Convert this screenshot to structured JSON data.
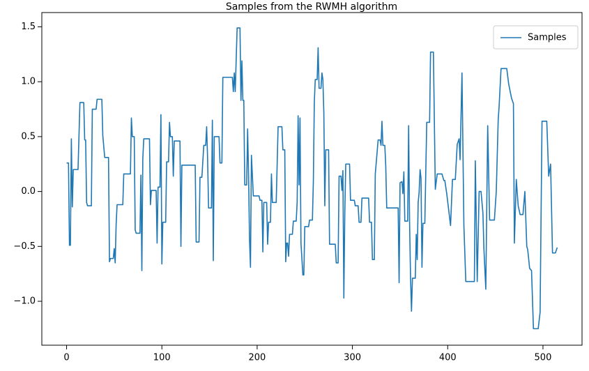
{
  "chart_data": {
    "type": "line",
    "title": "Samples from the RWMH algorithm",
    "x": [
      0,
      2,
      3,
      4,
      5,
      6,
      7,
      12,
      14,
      18,
      19,
      20,
      21,
      22,
      26,
      27,
      31,
      32,
      37,
      38,
      40,
      44,
      45,
      46,
      49,
      50,
      51,
      52,
      53,
      59,
      60,
      67,
      68,
      69,
      71,
      72,
      73,
      77,
      78,
      79,
      80,
      81,
      87,
      88,
      89,
      94,
      95,
      96,
      98,
      99,
      100,
      101,
      104,
      105,
      107,
      108,
      109,
      111,
      112,
      113,
      119,
      120,
      121,
      135,
      136,
      139,
      140,
      142,
      144,
      146,
      147,
      148,
      149,
      152,
      153,
      154,
      155,
      160,
      161,
      163,
      164,
      174,
      175,
      176,
      177,
      179,
      182,
      183,
      184,
      185,
      186,
      187,
      189,
      190,
      191,
      192,
      193,
      194,
      196,
      202,
      203,
      205,
      206,
      207,
      210,
      211,
      212,
      214,
      215,
      216,
      220,
      222,
      226,
      227,
      229,
      230,
      231,
      232,
      233,
      234,
      237,
      238,
      241,
      242,
      243,
      244,
      245,
      246,
      248,
      249,
      250,
      254,
      255,
      258,
      259,
      260,
      261,
      263,
      264,
      265,
      267,
      268,
      269,
      270,
      271,
      272,
      275,
      276,
      282,
      283,
      285,
      286,
      288,
      289,
      290,
      291,
      292,
      293,
      297,
      298,
      302,
      303,
      306,
      307,
      309,
      310,
      317,
      318,
      320,
      321,
      323,
      324,
      327,
      329,
      330,
      331,
      332,
      334,
      335,
      336,
      348,
      349,
      350,
      352,
      353,
      354,
      355,
      358,
      359,
      360,
      361,
      362,
      363,
      366,
      367,
      368,
      369,
      370,
      371,
      372,
      373,
      374,
      376,
      378,
      381,
      382,
      385,
      387,
      389,
      394,
      396,
      397,
      399,
      403,
      405,
      408,
      410,
      412,
      413,
      415,
      417,
      419,
      428,
      429,
      431,
      433,
      435,
      437,
      438,
      440,
      442,
      444,
      449,
      451,
      453,
      454,
      456,
      462,
      464,
      467,
      469,
      470,
      472,
      474,
      476,
      479,
      481,
      483,
      484,
      486,
      488,
      490,
      495,
      497,
      499,
      504,
      506,
      508,
      510,
      513,
      515
    ],
    "series": [
      {
        "name": "Samples",
        "color": "#1f77b4",
        "values": [
          0.26,
          0.26,
          -0.49,
          -0.49,
          0.48,
          -0.14,
          0.2,
          0.2,
          0.81,
          0.81,
          0.47,
          0.47,
          -0.1,
          -0.13,
          -0.13,
          0.75,
          0.75,
          0.84,
          0.84,
          0.51,
          0.31,
          0.31,
          -0.64,
          -0.61,
          -0.61,
          -0.52,
          -0.65,
          -0.3,
          -0.12,
          -0.12,
          0.16,
          0.16,
          0.67,
          0.5,
          0.5,
          -0.35,
          -0.38,
          -0.38,
          0.15,
          -0.72,
          0.3,
          0.48,
          0.48,
          -0.12,
          0.01,
          0.01,
          -0.47,
          0.04,
          0.04,
          0.7,
          -0.66,
          -0.28,
          -0.28,
          0.27,
          0.27,
          0.63,
          0.5,
          0.5,
          0.14,
          0.46,
          0.46,
          -0.5,
          0.24,
          0.24,
          -0.46,
          -0.46,
          0.13,
          0.13,
          0.42,
          0.42,
          0.59,
          0.3,
          -0.15,
          -0.15,
          0.65,
          -0.63,
          0.5,
          0.5,
          0.26,
          0.26,
          1.04,
          1.04,
          0.91,
          1.08,
          0.91,
          1.49,
          1.49,
          0.83,
          1.19,
          0.83,
          0.83,
          0.06,
          0.06,
          0.57,
          0.15,
          -0.43,
          -0.69,
          0.33,
          -0.04,
          -0.04,
          -0.08,
          -0.08,
          -0.55,
          -0.1,
          -0.1,
          -0.48,
          -0.28,
          -0.28,
          0.16,
          -0.1,
          -0.1,
          0.59,
          0.59,
          0.38,
          0.38,
          -0.64,
          -0.47,
          -0.47,
          -0.59,
          -0.39,
          -0.39,
          -0.27,
          -0.27,
          -0.1,
          0.69,
          0.06,
          0.67,
          -0.47,
          -0.76,
          -0.76,
          -0.32,
          -0.32,
          -0.26,
          -0.26,
          0.09,
          0.81,
          1.02,
          1.02,
          1.31,
          0.94,
          0.94,
          1.08,
          1.02,
          0.72,
          -0.13,
          0.38,
          0.38,
          -0.48,
          -0.48,
          -0.65,
          -0.65,
          0.14,
          0.14,
          0.01,
          0.19,
          -0.97,
          -0.2,
          0.25,
          0.25,
          -0.08,
          -0.08,
          -0.13,
          -0.13,
          -0.28,
          -0.28,
          -0.06,
          -0.06,
          -0.28,
          -0.28,
          -0.62,
          -0.62,
          0.16,
          0.47,
          0.47,
          0.42,
          0.64,
          0.42,
          0.42,
          0.23,
          -0.15,
          -0.15,
          -0.83,
          0.08,
          0.09,
          -0.02,
          0.18,
          -0.27,
          -0.27,
          0.6,
          -0.28,
          -0.78,
          -1.09,
          -0.79,
          -0.79,
          -0.39,
          -0.62,
          -0.1,
          -0.01,
          0.2,
          0.12,
          -0.69,
          -0.29,
          -0.29,
          0.63,
          0.63,
          1.27,
          1.27,
          0.02,
          0.16,
          0.16,
          0.1,
          0.1,
          -0.02,
          -0.31,
          0.11,
          0.11,
          0.43,
          0.48,
          0.29,
          1.08,
          -0.31,
          -0.82,
          -0.82,
          0.28,
          -0.82,
          0.0,
          0.0,
          -0.2,
          -0.52,
          -0.89,
          0.6,
          -0.26,
          -0.26,
          0.0,
          0.65,
          0.78,
          1.12,
          1.12,
          0.98,
          0.85,
          0.8,
          -0.47,
          0.11,
          -0.13,
          -0.21,
          -0.21,
          0.0,
          -0.5,
          -0.53,
          -0.7,
          -0.72,
          -1.25,
          -1.25,
          -1.1,
          0.64,
          0.64,
          0.14,
          0.25,
          -0.56,
          -0.56,
          -0.51
        ]
      }
    ],
    "xlim": [
      -26,
      541
    ],
    "xticks": [
      0,
      100,
      200,
      300,
      400,
      500
    ],
    "ylim": [
      -1.4,
      1.63
    ],
    "yticks": [
      {
        "value": -1.0,
        "label": "−1.0"
      },
      {
        "value": -0.5,
        "label": "−0.5"
      },
      {
        "value": 0,
        "label": "0.0"
      },
      0.5,
      {
        "value": 1.0,
        "label": "1.0"
      },
      1.5
    ],
    "legend": "upper right"
  }
}
